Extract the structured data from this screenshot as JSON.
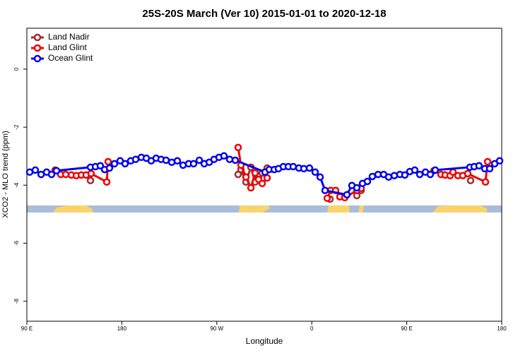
{
  "chart_data": {
    "type": "line",
    "title": "25S-20S March (Ver 10)   2015-01-01 to 2020-12-18",
    "xlabel": "Longitude",
    "ylabel": "XCO2 - MLO trend (ppm)",
    "xlim": [
      90,
      540
    ],
    "ylim": [
      -8.69,
      1.41
    ],
    "xticks": [
      {
        "value": 90,
        "label": "90 E"
      },
      180,
      {
        "value": 270,
        "label": "90 W"
      },
      {
        "value": 360,
        "label": "0"
      },
      {
        "value": 450,
        "label": "90 E"
      },
      {
        "value": 540,
        "label": "180"
      }
    ],
    "yticks": [
      0,
      -2,
      -4,
      -6,
      -8
    ],
    "legend": "topleft",
    "series": [
      {
        "name": "Land Nadir",
        "color": "#a52a2a",
        "x": [
          116.8,
          null,
          150.3,
          null,
          290.2,
          292.9,
          297.6,
          302.3,
          306.3,
          309.6,
          313.0,
          317.7,
          null,
          377.3,
          null,
          402.7,
          406.7,
          null,
          510.5
        ],
        "values": [
          -3.48,
          null,
          -3.84,
          null,
          -3.63,
          -3.46,
          -3.89,
          -3.38,
          -3.89,
          -3.7,
          -3.58,
          -3.41,
          null,
          -4.48,
          null,
          -4.36,
          -4.18,
          null,
          -3.84
        ]
      },
      {
        "name": "Land Glint",
        "color": "#ee0000",
        "x": [
          116.8,
          122.1,
          126.8,
          132.2,
          136.9,
          141.6,
          146.2,
          150.9,
          165.7,
          167.0,
          null,
          290.2,
          292.9,
          297.6,
          302.3,
          306.3,
          309.6,
          313.0,
          317.7,
          null,
          374.6,
          377.9,
          382.6,
          386.6,
          391.3,
          402.7,
          406.7,
          null,
          475.7,
          482.4,
          486.4,
          491.1,
          493.8,
          498.5,
          503.1,
          507.8,
          524.6,
          526.6
        ],
        "values": [
          -3.5,
          -3.63,
          -3.63,
          -3.65,
          -3.67,
          -3.65,
          -3.65,
          -3.6,
          -3.89,
          -3.19,
          null,
          -2.7,
          -3.31,
          -3.72,
          -4.09,
          -3.58,
          -3.8,
          -3.94,
          -3.75,
          null,
          -4.45,
          -4.18,
          -4.18,
          -4.4,
          -4.43,
          -4.18,
          -4.11,
          null,
          -3.5,
          -3.63,
          -3.65,
          -3.67,
          -3.55,
          -3.67,
          -3.67,
          -3.6,
          -3.89,
          -3.19
        ]
      },
      {
        "name": "Ocean Glint",
        "color": "#0000ee",
        "x": [
          92.7,
          98.0,
          103.5,
          108.7,
          113.4,
          118.1,
          150.3,
          155.0,
          159.6,
          163.7,
          168.3,
          173.0,
          178.4,
          183.1,
          188.4,
          193.1,
          198.5,
          203.2,
          207.8,
          212.5,
          217.2,
          221.9,
          227.3,
          232.6,
          238.0,
          243.3,
          248.0,
          253.4,
          258.1,
          262.8,
          267.4,
          272.1,
          276.8,
          282.2,
          287.5,
          315.7,
          319.7,
          324.4,
          328.4,
          333.1,
          337.8,
          342.4,
          347.8,
          352.5,
          357.8,
          363.2,
          367.9,
          372.6,
          393.3,
          398.0,
          402.7,
          408.1,
          412.7,
          417.4,
          422.8,
          428.1,
          432.8,
          438.2,
          443.5,
          448.2,
          452.9,
          457.6,
          462.3,
          467.7,
          472.3,
          477.0,
          509.8,
          513.9,
          518.5,
          523.9,
          528.6,
          533.3,
          538.0
        ],
        "values": [
          -3.55,
          -3.48,
          -3.63,
          -3.55,
          -3.63,
          -3.5,
          -3.38,
          -3.36,
          -3.33,
          -3.46,
          -3.41,
          -3.26,
          -3.16,
          -3.26,
          -3.16,
          -3.11,
          -3.04,
          -3.07,
          -3.16,
          -3.07,
          -3.11,
          -3.14,
          -3.21,
          -3.16,
          -3.31,
          -3.26,
          -3.26,
          -3.14,
          -3.26,
          -3.21,
          -3.11,
          -3.04,
          -2.99,
          -3.11,
          -3.14,
          -3.55,
          -3.46,
          -3.46,
          -3.43,
          -3.36,
          -3.36,
          -3.36,
          -3.41,
          -3.43,
          -3.41,
          -3.55,
          -3.72,
          -4.18,
          -4.33,
          -4.01,
          -4.09,
          -3.94,
          -3.87,
          -3.7,
          -3.63,
          -3.63,
          -3.72,
          -3.67,
          -3.63,
          -3.65,
          -3.53,
          -3.48,
          -3.63,
          -3.55,
          -3.63,
          -3.48,
          -3.38,
          -3.36,
          -3.33,
          -3.43,
          -3.43,
          -3.26,
          -3.16
        ]
      }
    ]
  }
}
